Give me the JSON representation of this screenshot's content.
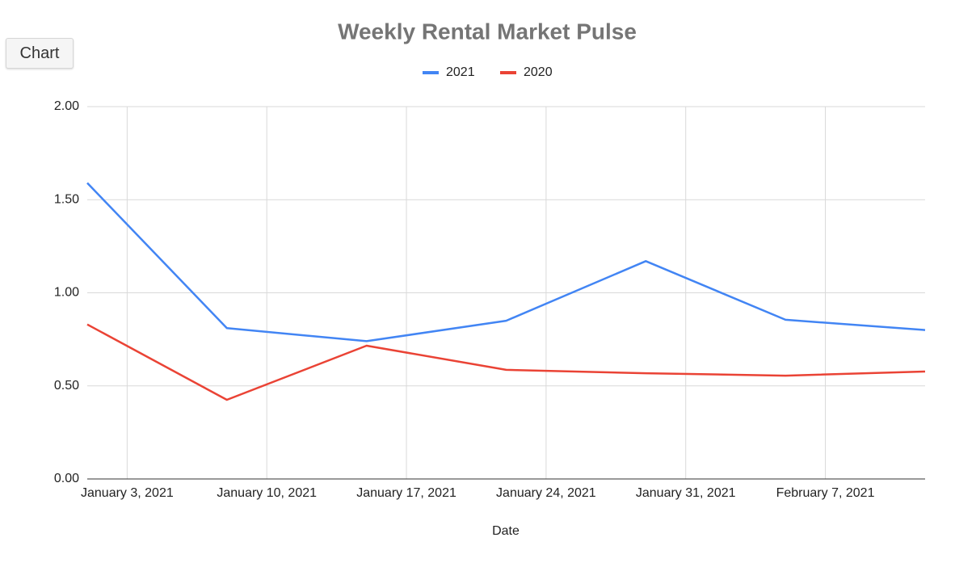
{
  "ui": {
    "button": "Chart"
  },
  "chart_data": {
    "type": "line",
    "title": "Weekly Rental Market Pulse",
    "x_label": "Date",
    "x": [
      "2021-01-01",
      "2021-01-08",
      "2021-01-15",
      "2021-01-22",
      "2021-01-29",
      "2021-02-05",
      "2021-02-12"
    ],
    "series": [
      {
        "name": "2021",
        "color": "#4285f4",
        "values": [
          1.59,
          0.81,
          0.74,
          0.85,
          1.17,
          0.855,
          0.8
        ]
      },
      {
        "name": "2020",
        "color": "#ea4335",
        "values": [
          0.83,
          0.425,
          0.716,
          0.586,
          0.568,
          0.555,
          0.577
        ]
      }
    ],
    "xlim": [
      "2021-01-01",
      "2021-02-12"
    ],
    "xticks": [
      {
        "value": "2021-01-03",
        "label": "January 3, 2021"
      },
      {
        "value": "2021-01-10",
        "label": "January 10, 2021"
      },
      {
        "value": "2021-01-17",
        "label": "January 17, 2021"
      },
      {
        "value": "2021-01-24",
        "label": "January 24, 2021"
      },
      {
        "value": "2021-01-31",
        "label": "January 31, 2021"
      },
      {
        "value": "2021-02-07",
        "label": "February 7, 2021"
      }
    ],
    "ylim": [
      0,
      2
    ],
    "yticks": [
      {
        "value": 0,
        "label": "0.00"
      },
      {
        "value": 0.5,
        "label": "0.50"
      },
      {
        "value": 1,
        "label": "1.00"
      },
      {
        "value": 1.5,
        "label": "1.50"
      },
      {
        "value": 2,
        "label": "2.00"
      }
    ],
    "grid": true,
    "legend": "top"
  }
}
